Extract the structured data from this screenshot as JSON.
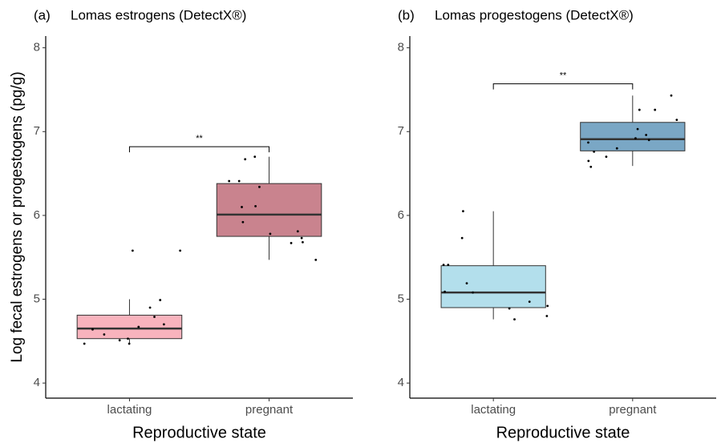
{
  "chart_data": [
    {
      "type": "box",
      "panel": "(a)",
      "title": "Lomas estrogens (DetectX®)",
      "y_label": "Log fecal estrogens or progestogens (pg/g)",
      "x_label": "Reproductive state",
      "categories": [
        "lactating",
        "pregnant"
      ],
      "boxes": [
        {
          "color": "#f8b3bd",
          "whisker_low": 4.47,
          "q1": 4.53,
          "median": 4.65,
          "q3": 4.81,
          "whisker_high": 5.0,
          "points": [
            5.58,
            5.58,
            4.99,
            4.9,
            4.79,
            4.7,
            4.67,
            4.64,
            4.58,
            4.53,
            4.51,
            4.47,
            4.47
          ]
        },
        {
          "color": "#c9838e",
          "whisker_low": 5.47,
          "q1": 5.75,
          "median": 6.01,
          "q3": 6.38,
          "whisker_high": 6.7,
          "points": [
            6.7,
            6.67,
            6.41,
            6.41,
            6.34,
            6.11,
            6.1,
            5.92,
            5.81,
            5.78,
            5.73,
            5.68,
            5.67,
            5.47
          ]
        }
      ],
      "significance": {
        "label": "**",
        "y": 6.82
      },
      "ylim": [
        3.82,
        8.14
      ],
      "yticks": [
        4,
        5,
        6,
        7,
        8
      ]
    },
    {
      "type": "box",
      "panel": "(b)",
      "title": "Lomas progestogens (DetectX®)",
      "x_label": "Reproductive state",
      "categories": [
        "lactating",
        "pregnant"
      ],
      "boxes": [
        {
          "color": "#b3dfec",
          "whisker_low": 4.76,
          "q1": 4.9,
          "median": 5.08,
          "q3": 5.4,
          "whisker_high": 6.05,
          "points": [
            6.05,
            5.73,
            5.41,
            5.41,
            5.19,
            5.09,
            5.08,
            4.97,
            4.92,
            4.89,
            4.8,
            4.76
          ]
        },
        {
          "color": "#7aa7c5",
          "whisker_low": 6.59,
          "q1": 6.77,
          "median": 6.91,
          "q3": 7.11,
          "whisker_high": 7.43,
          "points": [
            7.43,
            7.26,
            7.26,
            7.14,
            7.03,
            6.96,
            6.92,
            6.9,
            6.87,
            6.8,
            6.76,
            6.7,
            6.65,
            6.58
          ]
        }
      ],
      "significance": {
        "label": "**",
        "y": 7.57
      },
      "ylim": [
        3.82,
        8.14
      ],
      "yticks": [
        4,
        5,
        6,
        7,
        8
      ]
    }
  ]
}
